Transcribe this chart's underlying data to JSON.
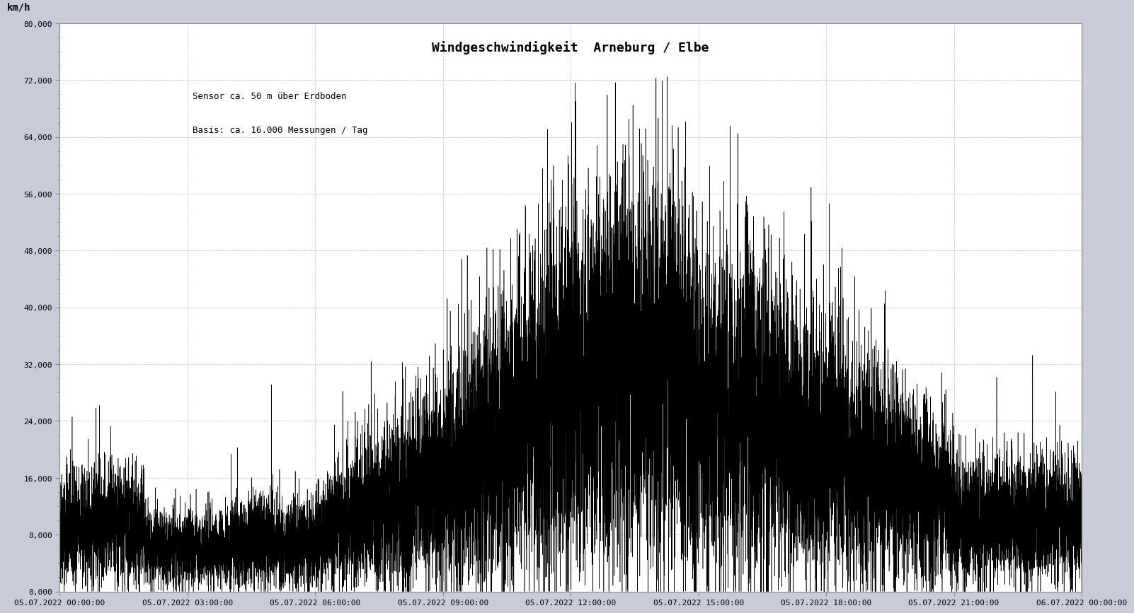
{
  "title": "Windgeschwindigkeit  Arneburg / Elbe",
  "subtitle1": "Sensor ca. 50 m über Erdboden",
  "subtitle2": "Basis: ca. 16.000 Messungen / Tag",
  "ylabel": "km/h",
  "background_color": "#c8ccd8",
  "plot_background_color": "#ffffff",
  "ylim": [
    0,
    80000
  ],
  "yticks": [
    0,
    8000,
    16000,
    24000,
    32000,
    40000,
    48000,
    56000,
    64000,
    72000,
    80000
  ],
  "ytick_labels": [
    "0,000",
    "8,000",
    "16,000",
    "24,000",
    "32,000",
    "40,000",
    "48,000",
    "56,000",
    "64,000",
    "72,000",
    "80,000"
  ],
  "xtick_labels": [
    "05.07.2022 00:00:00",
    "05.07.2022 03:00:00",
    "05.07.2022 06:00:00",
    "05.07.2022 09:00:00",
    "05.07.2022 12:00:00",
    "05.07.2022 15:00:00",
    "05.07.2022 18:00:00",
    "05.07.2022 21:00:00",
    "06.07.2022 00:00:00"
  ],
  "line_color": "#000000",
  "grid_color": "#bbbbbb",
  "title_fontsize": 13,
  "subtitle_fontsize": 9,
  "tick_fontsize": 8,
  "ylabel_fontsize": 10,
  "n_points": 17280,
  "seed": 42
}
